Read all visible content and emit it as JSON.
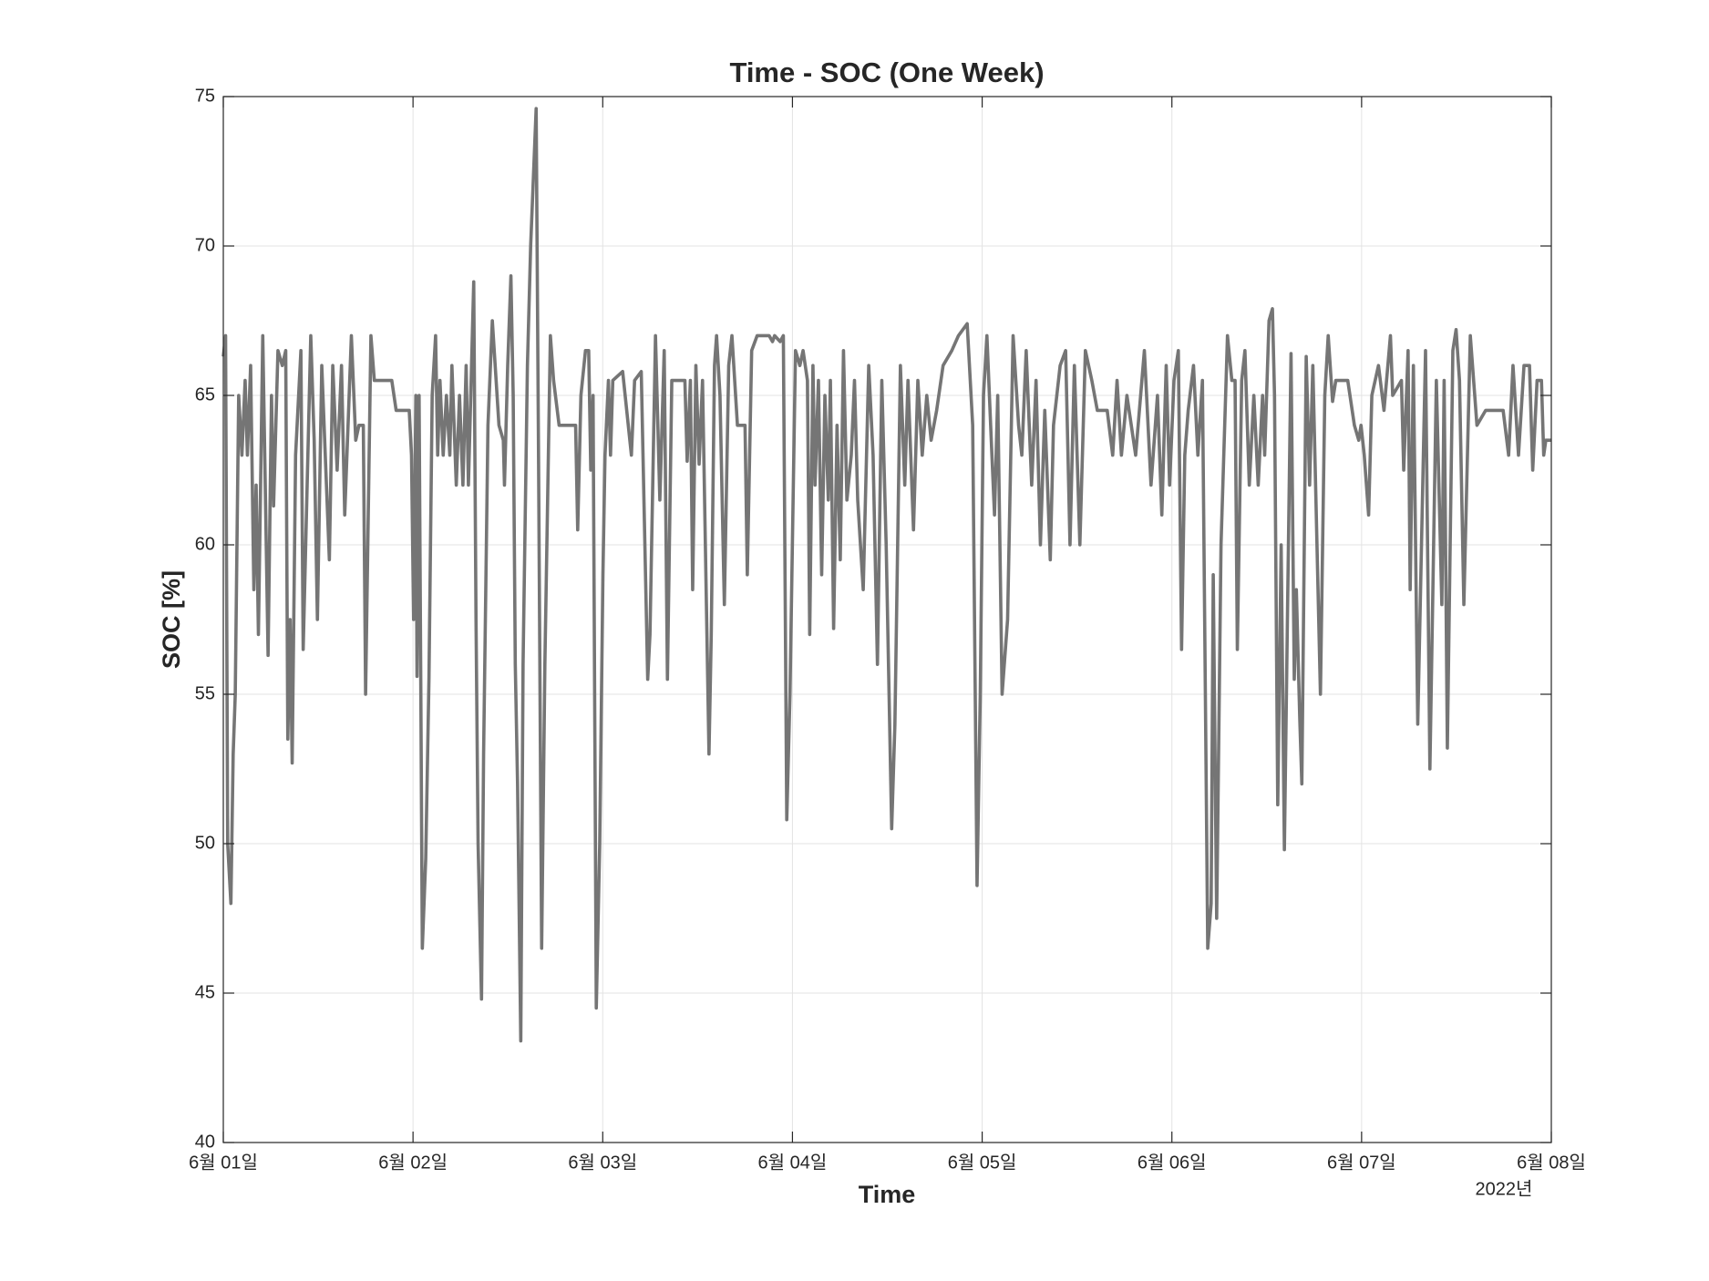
{
  "chart_data": {
    "type": "line",
    "title": "Time - SOC (One Week)",
    "x_label": "Time",
    "y_label": "SOC [%]",
    "x_secondary_label": "2022년",
    "color": "#757575",
    "grid": true,
    "xlim": [
      1,
      8
    ],
    "xticks": [
      {
        "value": 1,
        "label": "6월 01일"
      },
      {
        "value": 2,
        "label": "6월 02일"
      },
      {
        "value": 3,
        "label": "6월 03일"
      },
      {
        "value": 4,
        "label": "6월 04일"
      },
      {
        "value": 5,
        "label": "6월 05일"
      },
      {
        "value": 6,
        "label": "6월 06일"
      },
      {
        "value": 7,
        "label": "6월 07일"
      },
      {
        "value": 8,
        "label": "6월 08일"
      }
    ],
    "ylim": [
      40,
      75
    ],
    "yticks": [
      40,
      45,
      50,
      55,
      60,
      65,
      70,
      75
    ],
    "x": [
      1.0,
      1.012,
      1.023,
      1.04,
      1.052,
      1.063,
      1.081,
      1.098,
      1.115,
      1.127,
      1.144,
      1.161,
      1.173,
      1.185,
      1.208,
      1.236,
      1.254,
      1.265,
      1.288,
      1.311,
      1.329,
      1.34,
      1.352,
      1.363,
      1.381,
      1.409,
      1.421,
      1.461,
      1.479,
      1.496,
      1.519,
      1.559,
      1.577,
      1.6,
      1.623,
      1.64,
      1.675,
      1.698,
      1.715,
      1.738,
      1.75,
      1.778,
      1.796,
      1.888,
      1.911,
      1.98,
      1.992,
      2.003,
      2.015,
      2.021,
      2.032,
      2.049,
      2.067,
      2.084,
      2.101,
      2.119,
      2.13,
      2.142,
      2.159,
      2.176,
      2.194,
      2.205,
      2.228,
      2.245,
      2.263,
      2.28,
      2.292,
      2.32,
      2.332,
      2.343,
      2.361,
      2.372,
      2.395,
      2.418,
      2.453,
      2.476,
      2.482,
      2.499,
      2.516,
      2.528,
      2.539,
      2.551,
      2.568,
      2.58,
      2.603,
      2.62,
      2.649,
      2.661,
      2.678,
      2.695,
      2.724,
      2.741,
      2.77,
      2.857,
      2.868,
      2.885,
      2.909,
      2.926,
      2.937,
      2.949,
      2.966,
      2.984,
      3.001,
      3.012,
      3.03,
      3.041,
      3.053,
      3.105,
      3.151,
      3.168,
      3.203,
      3.237,
      3.249,
      3.278,
      3.301,
      3.324,
      3.341,
      3.364,
      3.433,
      3.445,
      3.462,
      3.474,
      3.491,
      3.508,
      3.526,
      3.56,
      3.572,
      3.589,
      3.6,
      3.618,
      3.641,
      3.664,
      3.681,
      3.71,
      3.75,
      3.762,
      3.785,
      3.814,
      3.877,
      3.895,
      3.906,
      3.935,
      3.952,
      3.97,
      3.987,
      4.016,
      4.039,
      4.056,
      4.079,
      4.091,
      4.108,
      4.119,
      4.137,
      4.154,
      4.171,
      4.189,
      4.2,
      4.217,
      4.235,
      4.252,
      4.269,
      4.287,
      4.31,
      4.327,
      4.344,
      4.373,
      4.402,
      4.425,
      4.448,
      4.471,
      4.494,
      4.523,
      4.54,
      4.569,
      4.592,
      4.609,
      4.638,
      4.661,
      4.684,
      4.708,
      4.731,
      4.76,
      4.794,
      4.84,
      4.875,
      4.921,
      4.95,
      4.973,
      4.99,
      5.007,
      5.025,
      5.048,
      5.065,
      5.082,
      5.105,
      5.134,
      5.163,
      5.192,
      5.209,
      5.232,
      5.261,
      5.284,
      5.307,
      5.33,
      5.359,
      5.376,
      5.411,
      5.44,
      5.463,
      5.486,
      5.515,
      5.544,
      5.578,
      5.607,
      5.659,
      5.688,
      5.711,
      5.734,
      5.763,
      5.809,
      5.855,
      5.89,
      5.924,
      5.947,
      5.97,
      5.988,
      6.011,
      6.034,
      6.051,
      6.068,
      6.086,
      6.114,
      6.137,
      6.161,
      6.189,
      6.207,
      6.218,
      6.236,
      6.259,
      6.293,
      6.316,
      6.333,
      6.345,
      6.368,
      6.385,
      6.408,
      6.432,
      6.455,
      6.478,
      6.489,
      6.512,
      6.53,
      6.541,
      6.558,
      6.576,
      6.593,
      6.61,
      6.628,
      6.645,
      6.656,
      6.674,
      6.685,
      6.708,
      6.726,
      6.743,
      6.783,
      6.806,
      6.824,
      6.847,
      6.864,
      6.927,
      6.962,
      6.985,
      6.997,
      7.014,
      7.037,
      7.054,
      7.089,
      7.118,
      7.152,
      7.164,
      7.21,
      7.222,
      7.245,
      7.256,
      7.273,
      7.296,
      7.337,
      7.36,
      7.394,
      7.423,
      7.435,
      7.452,
      7.481,
      7.498,
      7.516,
      7.539,
      7.573,
      7.608,
      7.654,
      7.746,
      7.775,
      7.798,
      7.827,
      7.856,
      7.885,
      7.902,
      7.925,
      7.948,
      7.96,
      7.971,
      8.0
    ],
    "values": [
      66.3,
      67,
      50,
      48,
      53,
      55,
      65,
      63,
      65.5,
      63,
      66,
      58.5,
      62,
      57,
      67,
      56.3,
      65,
      61.3,
      66.5,
      66,
      66.5,
      53.5,
      57.5,
      52.7,
      63,
      66.5,
      56.5,
      67,
      63.5,
      57.5,
      66,
      59.5,
      66,
      62.5,
      66,
      61,
      67,
      63.5,
      64,
      64,
      55,
      67,
      65.5,
      65.5,
      64.5,
      64.5,
      63,
      57.5,
      65,
      55.6,
      65,
      46.5,
      49.5,
      55.5,
      65,
      67,
      63,
      65.5,
      63,
      65,
      63,
      66,
      62,
      65,
      62,
      66,
      62,
      68.8,
      57.5,
      50,
      44.8,
      53,
      64,
      67.5,
      64,
      63.5,
      62,
      66,
      69,
      65,
      56,
      52,
      43.4,
      56,
      66,
      70,
      74.6,
      63.5,
      46.5,
      56,
      67,
      65.5,
      64,
      64,
      60.5,
      65,
      66.5,
      66.5,
      62.5,
      65,
      44.5,
      50,
      59,
      63,
      65.5,
      63,
      65.5,
      65.8,
      63,
      65.5,
      65.8,
      55.5,
      57,
      67,
      61.5,
      66.5,
      55.5,
      65.5,
      65.5,
      62.8,
      65.5,
      58.5,
      66,
      62.7,
      65.5,
      53,
      57,
      66,
      67,
      65,
      58,
      66,
      67,
      64,
      64,
      59,
      66.5,
      67,
      67,
      66.8,
      67,
      66.8,
      67,
      50.8,
      55,
      66.5,
      66,
      66.5,
      65.5,
      57,
      66,
      62,
      65.5,
      59,
      65,
      61.5,
      65.5,
      57.2,
      64,
      59.5,
      66.5,
      61.5,
      63,
      65.5,
      61.5,
      58.5,
      66,
      63,
      56,
      65.5,
      60,
      50.5,
      54,
      66,
      62,
      65.5,
      60.5,
      65.5,
      63,
      65,
      63.5,
      64.5,
      66,
      66.5,
      67,
      67.4,
      64,
      48.6,
      55,
      65,
      67,
      63.5,
      61,
      65,
      55,
      57.5,
      67,
      64,
      63,
      66.5,
      62,
      65.5,
      60,
      64.5,
      59.5,
      64,
      66,
      66.5,
      60,
      66,
      60,
      66.5,
      65.5,
      64.5,
      64.5,
      63,
      65.5,
      63,
      65,
      63,
      66.5,
      62,
      65,
      61,
      66,
      62,
      65.5,
      66.5,
      56.5,
      63,
      64.5,
      66,
      63,
      65.5,
      46.5,
      48,
      59,
      47.5,
      60,
      67,
      65.5,
      65.5,
      56.5,
      65.5,
      66.5,
      62,
      65,
      62,
      65,
      63,
      67.5,
      67.9,
      65,
      51.3,
      60,
      49.8,
      58,
      66.4,
      55.5,
      58.5,
      54.2,
      52,
      66.3,
      62,
      66,
      55,
      65,
      67,
      64.8,
      65.5,
      65.5,
      64,
      63.5,
      64,
      63,
      61,
      65,
      66,
      64.5,
      67,
      65,
      65.5,
      62.5,
      66.5,
      58.5,
      66,
      54,
      66.5,
      52.5,
      65.5,
      58,
      65.5,
      53.2,
      66.5,
      67.2,
      65.5,
      58,
      67,
      64,
      64.5,
      64.5,
      63,
      66,
      63,
      66,
      66,
      62.5,
      65.5,
      65.5,
      63,
      63.5,
      63.5
    ]
  }
}
